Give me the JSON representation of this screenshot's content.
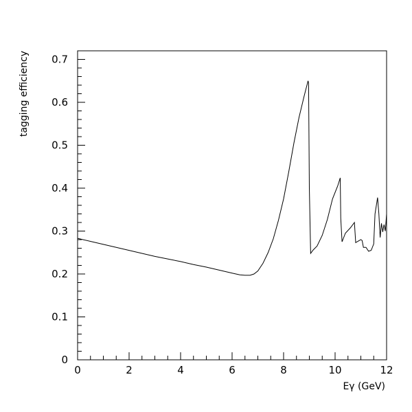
{
  "chart_data": {
    "type": "line",
    "title": "",
    "xlabel": "Eγ (GeV)",
    "ylabel": "tagging efficiency",
    "xlim": [
      0,
      12
    ],
    "ylim": [
      0,
      0.72
    ],
    "x_ticks": [
      0,
      2,
      4,
      6,
      8,
      10,
      12
    ],
    "y_ticks": [
      0,
      0.1,
      0.2,
      0.3,
      0.4,
      0.5,
      0.6,
      0.7
    ],
    "x_tick_labels": [
      "0",
      "2",
      "4",
      "6",
      "8",
      "10",
      "12"
    ],
    "y_tick_labels": [
      "0",
      "0.1",
      "0.2",
      "0.3",
      "0.4",
      "0.5",
      "0.6",
      "0.7"
    ],
    "grid": false,
    "legend": "none",
    "series": [
      {
        "x": [
          0.0,
          0.5,
          1.0,
          1.5,
          2.0,
          2.5,
          3.0,
          3.5,
          4.0,
          4.5,
          5.0,
          5.5,
          6.0,
          6.3,
          6.5,
          6.7,
          6.85,
          7.0,
          7.2,
          7.4,
          7.6,
          7.8,
          8.0,
          8.2,
          8.4,
          8.6,
          8.8,
          8.95,
          8.97,
          9.0,
          9.05,
          9.15,
          9.3,
          9.5,
          9.7,
          9.9,
          10.1,
          10.2,
          10.22,
          10.27,
          10.4,
          10.6,
          10.75,
          10.8,
          10.85,
          11.0,
          11.05,
          11.1,
          11.2,
          11.3,
          11.4,
          11.5,
          11.55,
          11.65,
          11.7,
          11.75,
          11.8,
          11.85,
          11.9,
          11.95,
          12.0
        ],
        "y": [
          0.283,
          0.276,
          0.269,
          0.262,
          0.255,
          0.248,
          0.241,
          0.235,
          0.229,
          0.222,
          0.216,
          0.209,
          0.202,
          0.198,
          0.197,
          0.197,
          0.2,
          0.207,
          0.225,
          0.25,
          0.282,
          0.325,
          0.375,
          0.438,
          0.505,
          0.565,
          0.615,
          0.65,
          0.645,
          0.4,
          0.248,
          0.256,
          0.265,
          0.29,
          0.327,
          0.375,
          0.405,
          0.424,
          0.33,
          0.275,
          0.295,
          0.308,
          0.32,
          0.273,
          0.275,
          0.28,
          0.278,
          0.262,
          0.262,
          0.253,
          0.255,
          0.27,
          0.34,
          0.378,
          0.34,
          0.285,
          0.318,
          0.298,
          0.315,
          0.3,
          0.34
        ]
      }
    ]
  }
}
